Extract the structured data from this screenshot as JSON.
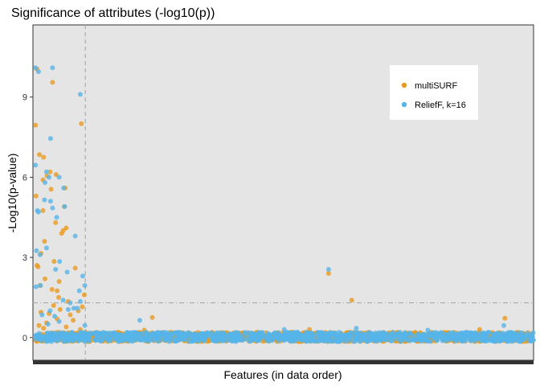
{
  "chart_data": {
    "type": "scatter",
    "title": "Significance of attributes (-log10(p))",
    "xlabel": "Features (in data order)",
    "ylabel": "-Log10(p-value)",
    "x_tick_labels": "none",
    "ylim": [
      -0.85,
      11.7
    ],
    "xlim": [
      -40,
      9900
    ],
    "yticks": [
      0,
      3,
      6,
      9
    ],
    "grid": false,
    "panel_background": "#e5e5e5",
    "legend_position": "top-right",
    "reference_lines": {
      "vertical_dashed_x": 1000,
      "horizontal_dashdot_y": 1.3
    },
    "series": [
      {
        "name": "multiSURF",
        "color": "#e89a1e",
        "highlighted_points": [
          {
            "x": 40,
            "y": 10.05
          },
          {
            "x": 350,
            "y": 9.55
          },
          {
            "x": 10,
            "y": 7.95
          },
          {
            "x": 920,
            "y": 8.0
          },
          {
            "x": 90,
            "y": 6.85
          },
          {
            "x": 170,
            "y": 6.75
          },
          {
            "x": 300,
            "y": 6.2
          },
          {
            "x": 240,
            "y": 6.05
          },
          {
            "x": 420,
            "y": 6.1
          },
          {
            "x": 160,
            "y": 5.9
          },
          {
            "x": 320,
            "y": 5.55
          },
          {
            "x": 600,
            "y": 5.6
          },
          {
            "x": 20,
            "y": 5.3
          },
          {
            "x": 580,
            "y": 4.9
          },
          {
            "x": 160,
            "y": 4.75
          },
          {
            "x": 410,
            "y": 4.3
          },
          {
            "x": 620,
            "y": 4.1
          },
          {
            "x": 560,
            "y": 4.0
          },
          {
            "x": 530,
            "y": 3.9
          },
          {
            "x": 190,
            "y": 3.6
          },
          {
            "x": 120,
            "y": 3.15
          },
          {
            "x": 380,
            "y": 2.85
          },
          {
            "x": 40,
            "y": 2.7
          },
          {
            "x": 60,
            "y": 2.65
          },
          {
            "x": 800,
            "y": 2.6
          },
          {
            "x": 200,
            "y": 2.2
          },
          {
            "x": 480,
            "y": 2.1
          },
          {
            "x": 100,
            "y": 1.95
          },
          {
            "x": 340,
            "y": 1.8
          },
          {
            "x": 440,
            "y": 1.75
          },
          {
            "x": 980,
            "y": 1.6
          },
          {
            "x": 470,
            "y": 1.5
          },
          {
            "x": 660,
            "y": 1.35
          },
          {
            "x": 370,
            "y": 1.2
          },
          {
            "x": 940,
            "y": 1.15
          },
          {
            "x": 500,
            "y": 1.05
          },
          {
            "x": 860,
            "y": 1.0
          },
          {
            "x": 120,
            "y": 0.95
          },
          {
            "x": 280,
            "y": 0.9
          },
          {
            "x": 700,
            "y": 0.85
          },
          {
            "x": 440,
            "y": 0.7
          },
          {
            "x": 760,
            "y": 0.65
          },
          {
            "x": 230,
            "y": 0.55
          },
          {
            "x": 80,
            "y": 0.45
          },
          {
            "x": 620,
            "y": 0.4
          },
          {
            "x": 170,
            "y": 0.35
          },
          {
            "x": 900,
            "y": 0.3
          },
          {
            "x": 5830,
            "y": 2.4
          },
          {
            "x": 6290,
            "y": 1.4
          },
          {
            "x": 2330,
            "y": 0.75
          },
          {
            "x": 9330,
            "y": 0.72
          },
          {
            "x": 5450,
            "y": 0.3
          },
          {
            "x": 8830,
            "y": 0.3
          },
          {
            "x": 2170,
            "y": 0.28
          }
        ],
        "baseline_cluster": {
          "x_range": [
            0,
            9900
          ],
          "y_range": [
            -0.15,
            0.2
          ]
        }
      },
      {
        "name": "ReliefF, k=16",
        "color": "#56b4e9",
        "highlighted_points": [
          {
            "x": 10,
            "y": 10.1
          },
          {
            "x": 70,
            "y": 9.95
          },
          {
            "x": 350,
            "y": 10.1
          },
          {
            "x": 900,
            "y": 9.1
          },
          {
            "x": 310,
            "y": 7.45
          },
          {
            "x": 10,
            "y": 6.45
          },
          {
            "x": 230,
            "y": 6.2
          },
          {
            "x": 280,
            "y": 6.0
          },
          {
            "x": 200,
            "y": 5.8
          },
          {
            "x": 480,
            "y": 6.0
          },
          {
            "x": 570,
            "y": 5.6
          },
          {
            "x": 190,
            "y": 5.15
          },
          {
            "x": 310,
            "y": 5.1
          },
          {
            "x": 350,
            "y": 4.85
          },
          {
            "x": 50,
            "y": 4.75
          },
          {
            "x": 70,
            "y": 4.7
          },
          {
            "x": 590,
            "y": 4.9
          },
          {
            "x": 430,
            "y": 4.5
          },
          {
            "x": 230,
            "y": 3.35
          },
          {
            "x": 800,
            "y": 3.8
          },
          {
            "x": 30,
            "y": 3.25
          },
          {
            "x": 100,
            "y": 3.1
          },
          {
            "x": 490,
            "y": 2.85
          },
          {
            "x": 640,
            "y": 2.45
          },
          {
            "x": 410,
            "y": 2.55
          },
          {
            "x": 950,
            "y": 2.3
          },
          {
            "x": 20,
            "y": 1.9
          },
          {
            "x": 110,
            "y": 1.95
          },
          {
            "x": 990,
            "y": 1.95
          },
          {
            "x": 880,
            "y": 1.75
          },
          {
            "x": 560,
            "y": 1.4
          },
          {
            "x": 700,
            "y": 1.3
          },
          {
            "x": 900,
            "y": 1.35
          },
          {
            "x": 770,
            "y": 1.1
          },
          {
            "x": 840,
            "y": 1.1
          },
          {
            "x": 660,
            "y": 1.05
          },
          {
            "x": 300,
            "y": 1.0
          },
          {
            "x": 140,
            "y": 0.85
          },
          {
            "x": 390,
            "y": 0.8
          },
          {
            "x": 480,
            "y": 0.6
          },
          {
            "x": 990,
            "y": 0.45
          },
          {
            "x": 260,
            "y": 0.5
          },
          {
            "x": 5830,
            "y": 2.55
          },
          {
            "x": 2080,
            "y": 0.65
          },
          {
            "x": 9310,
            "y": 0.45
          },
          {
            "x": 6380,
            "y": 0.35
          },
          {
            "x": 4950,
            "y": 0.3
          },
          {
            "x": 7800,
            "y": 0.28
          }
        ],
        "baseline_cluster": {
          "x_range": [
            0,
            9900
          ],
          "y_range": [
            -0.15,
            0.2
          ]
        }
      }
    ]
  }
}
